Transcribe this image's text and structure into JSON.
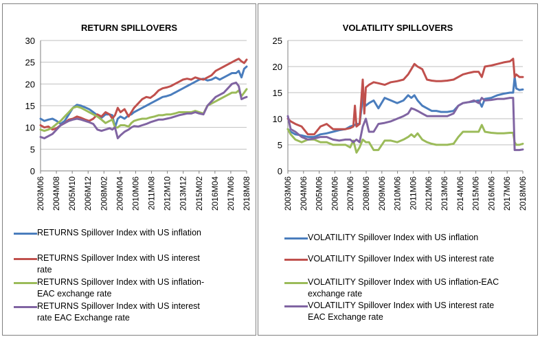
{
  "chart_data": [
    {
      "id": "left",
      "type": "line",
      "title": "RETURN SPILLOVERS",
      "ylim": [
        0,
        30
      ],
      "yticks": [
        0,
        5,
        10,
        15,
        20,
        25,
        30
      ],
      "x_range": [
        2003.42,
        2018.58
      ],
      "xtick_labels": [
        "2003M06",
        "2004M08",
        "2005M10",
        "2006M12",
        "2008M02",
        "2009M04",
        "2010M06",
        "2011M08",
        "2012M10",
        "2013M12",
        "2015M02",
        "2016M04",
        "2017M06",
        "2018M08"
      ],
      "series": [
        {
          "name": "RETURNS Spillover Index with US inflation",
          "color": "#4a7dbd",
          "x": [
            2003.42,
            2003.7,
            2004.0,
            2004.3,
            2004.6,
            2004.9,
            2005.2,
            2005.5,
            2005.8,
            2006.1,
            2006.4,
            2006.7,
            2007.0,
            2007.3,
            2007.6,
            2007.9,
            2008.2,
            2008.5,
            2008.7,
            2008.9,
            2009.1,
            2009.3,
            2009.6,
            2009.9,
            2010.1,
            2010.3,
            2010.6,
            2010.9,
            2011.2,
            2011.5,
            2011.8,
            2012.1,
            2012.4,
            2012.7,
            2013.0,
            2013.3,
            2013.6,
            2013.9,
            2014.2,
            2014.5,
            2014.8,
            2015.1,
            2015.4,
            2015.7,
            2016.0,
            2016.3,
            2016.6,
            2016.9,
            2017.2,
            2017.5,
            2017.8,
            2018.0,
            2018.2,
            2018.4,
            2018.58
          ],
          "y": [
            12,
            11.5,
            11.8,
            12,
            11.5,
            10.8,
            11.5,
            13,
            14.5,
            15.2,
            15,
            14.6,
            14.2,
            13.5,
            12.8,
            12.2,
            13,
            13,
            12.8,
            10,
            12,
            12.5,
            12,
            12.8,
            13,
            13.5,
            14,
            14.5,
            15,
            15.5,
            16,
            16.5,
            17,
            17.2,
            17.5,
            18,
            18.5,
            19,
            19.5,
            20,
            20.5,
            21,
            21.2,
            20.8,
            21,
            21.5,
            21,
            21.5,
            22,
            22.5,
            22.5,
            23,
            21.5,
            23.5,
            24
          ]
        },
        {
          "name": "RETURNS Spillover Index with US interest rate",
          "color": "#c0504d",
          "x": [
            2003.42,
            2003.7,
            2004.0,
            2004.3,
            2004.6,
            2004.9,
            2005.2,
            2005.5,
            2005.8,
            2006.1,
            2006.4,
            2006.7,
            2007.0,
            2007.3,
            2007.6,
            2007.9,
            2008.2,
            2008.5,
            2008.7,
            2008.9,
            2009.1,
            2009.3,
            2009.6,
            2009.9,
            2010.1,
            2010.3,
            2010.6,
            2010.9,
            2011.2,
            2011.5,
            2011.8,
            2012.1,
            2012.4,
            2012.7,
            2013.0,
            2013.3,
            2013.6,
            2013.9,
            2014.2,
            2014.5,
            2014.8,
            2015.1,
            2015.4,
            2015.7,
            2016.0,
            2016.3,
            2016.6,
            2016.9,
            2017.2,
            2017.5,
            2017.8,
            2018.0,
            2018.2,
            2018.4,
            2018.58
          ],
          "y": [
            10.5,
            10,
            10.2,
            9.5,
            9.8,
            10.5,
            11,
            11.8,
            12,
            12.5,
            12.2,
            11.8,
            11.5,
            12,
            13,
            12.5,
            13.5,
            13,
            12,
            12.8,
            14.5,
            13.5,
            14.2,
            12.5,
            13.5,
            14.5,
            15.5,
            16.5,
            17,
            16.8,
            17.5,
            18.5,
            19,
            19.2,
            19.5,
            20,
            20.5,
            21,
            21.2,
            21,
            21.5,
            21.2,
            21,
            21.5,
            22,
            23,
            23.5,
            24,
            24.5,
            25,
            25.5,
            25.8,
            25.2,
            24.8,
            25.6
          ]
        },
        {
          "name": "RETURNS Spillover Index with US inflation-EAC exchange rate",
          "color": "#9bbb59",
          "x": [
            2003.42,
            2003.7,
            2004.0,
            2004.3,
            2004.6,
            2004.9,
            2005.2,
            2005.5,
            2005.8,
            2006.1,
            2006.4,
            2006.7,
            2007.0,
            2007.3,
            2007.6,
            2007.9,
            2008.2,
            2008.5,
            2008.7,
            2008.9,
            2009.1,
            2009.3,
            2009.6,
            2009.9,
            2010.1,
            2010.3,
            2010.6,
            2010.9,
            2011.2,
            2011.5,
            2011.8,
            2012.1,
            2012.4,
            2012.7,
            2013.0,
            2013.3,
            2013.6,
            2013.9,
            2014.2,
            2014.5,
            2014.8,
            2015.1,
            2015.4,
            2015.7,
            2016.0,
            2016.3,
            2016.6,
            2016.9,
            2017.2,
            2017.5,
            2017.8,
            2018.0,
            2018.2,
            2018.4,
            2018.58
          ],
          "y": [
            9.5,
            9.2,
            9.5,
            10,
            10.8,
            11.5,
            12.5,
            13.5,
            14.5,
            14.8,
            14.5,
            14,
            13.5,
            13,
            12.5,
            11.8,
            11,
            11.5,
            11.8,
            10,
            10,
            10.5,
            10.5,
            10.2,
            11,
            11.5,
            11.8,
            12,
            12,
            12.3,
            12.5,
            12.8,
            12.8,
            13,
            13,
            13.2,
            13.5,
            13.5,
            13.5,
            13.5,
            13.8,
            13.5,
            13.2,
            15,
            15.5,
            16,
            16.5,
            17,
            17.5,
            18,
            18,
            18.5,
            17.2,
            18,
            18.8
          ]
        },
        {
          "name": "RETURNS Spillover Index with US interest rate EAC Exchange rate",
          "color": "#8064a2",
          "x": [
            2003.42,
            2003.7,
            2004.0,
            2004.3,
            2004.6,
            2004.9,
            2005.2,
            2005.5,
            2005.8,
            2006.1,
            2006.4,
            2006.7,
            2007.0,
            2007.3,
            2007.6,
            2007.9,
            2008.2,
            2008.5,
            2008.7,
            2008.9,
            2009.1,
            2009.3,
            2009.6,
            2009.9,
            2010.1,
            2010.3,
            2010.6,
            2010.9,
            2011.2,
            2011.5,
            2011.8,
            2012.1,
            2012.4,
            2012.7,
            2013.0,
            2013.3,
            2013.6,
            2013.9,
            2014.2,
            2014.5,
            2014.8,
            2015.1,
            2015.4,
            2015.7,
            2016.0,
            2016.3,
            2016.6,
            2016.9,
            2017.2,
            2017.5,
            2017.8,
            2018.0,
            2018.2,
            2018.4,
            2018.58
          ],
          "y": [
            7.8,
            7.5,
            8,
            8.5,
            9.5,
            10.5,
            11,
            11.5,
            11.8,
            12,
            11.8,
            11.5,
            11.2,
            10.8,
            9.5,
            9.2,
            9.5,
            9.8,
            9.5,
            10,
            7.5,
            8.2,
            9,
            9.5,
            10,
            10.3,
            10.2,
            10.5,
            10.8,
            11.2,
            11.5,
            11.8,
            11.8,
            12,
            12.2,
            12.5,
            12.8,
            13,
            13.2,
            13.2,
            13.5,
            13.2,
            13,
            15,
            16,
            17,
            17.5,
            18,
            19,
            20,
            20.3,
            19.5,
            16.5,
            16.8,
            17
          ]
        }
      ]
    },
    {
      "id": "right",
      "type": "line",
      "title": "VOLATILITY SPILLOVERS",
      "ylim": [
        0,
        25
      ],
      "yticks": [
        0,
        5,
        10,
        15,
        20,
        25
      ],
      "x_range": [
        2003.42,
        2018.42
      ],
      "xtick_labels": [
        "2003M06",
        "2004M06",
        "2005M06",
        "2006M06",
        "2007M06",
        "2008M06",
        "2009M06",
        "2010M06",
        "2011M06",
        "2012M06",
        "2013M06",
        "2014M06",
        "2015M06",
        "2016M06",
        "2017M06",
        "2018M06"
      ],
      "series": [
        {
          "name": "VOLATILITY Spillover Index with US inflation",
          "color": "#4a7dbd",
          "x": [
            2003.42,
            2003.6,
            2003.9,
            2004.3,
            2004.7,
            2005.1,
            2005.5,
            2005.9,
            2006.3,
            2006.7,
            2007.1,
            2007.4,
            2007.7,
            2007.8,
            2008.0,
            2008.2,
            2008.4,
            2008.6,
            2008.9,
            2009.2,
            2009.6,
            2010.0,
            2010.4,
            2010.8,
            2011.1,
            2011.3,
            2011.5,
            2011.7,
            2012.0,
            2012.3,
            2012.6,
            2012.9,
            2013.2,
            2013.6,
            2014.0,
            2014.3,
            2014.6,
            2015.0,
            2015.3,
            2015.6,
            2015.8,
            2016.0,
            2016.4,
            2016.8,
            2017.2,
            2017.6,
            2017.8,
            2017.9,
            2018.0,
            2018.2,
            2018.42
          ],
          "y": [
            8,
            7.5,
            7,
            6.8,
            6.5,
            6.5,
            7,
            7.2,
            7.5,
            7.8,
            8,
            8.5,
            8.8,
            9,
            9,
            14,
            12.5,
            13,
            13.5,
            12,
            14,
            13.5,
            13,
            13.5,
            14.5,
            14,
            14.5,
            13.5,
            12.5,
            12,
            11.5,
            11.5,
            11.3,
            11.3,
            11.5,
            12.5,
            13,
            13.2,
            13.3,
            13.5,
            12.3,
            13.8,
            14,
            14.5,
            14.8,
            15,
            15,
            18,
            15.8,
            15.5,
            15.6
          ]
        },
        {
          "name": "VOLATILITY Spillover Index with US interest rate",
          "color": "#c0504d",
          "x": [
            2003.42,
            2003.6,
            2003.9,
            2004.3,
            2004.7,
            2005.1,
            2005.5,
            2005.9,
            2006.3,
            2006.7,
            2007.1,
            2007.4,
            2007.6,
            2007.7,
            2007.8,
            2008.0,
            2008.2,
            2008.3,
            2008.4,
            2008.6,
            2008.9,
            2009.2,
            2009.6,
            2010.0,
            2010.4,
            2010.8,
            2011.1,
            2011.3,
            2011.5,
            2011.7,
            2012.0,
            2012.3,
            2012.6,
            2012.9,
            2013.2,
            2013.6,
            2014.0,
            2014.3,
            2014.6,
            2015.0,
            2015.3,
            2015.6,
            2015.8,
            2016.0,
            2016.4,
            2016.8,
            2017.2,
            2017.6,
            2017.8,
            2017.9,
            2018.0,
            2018.2,
            2018.42
          ],
          "y": [
            10,
            9.5,
            9,
            8.5,
            7,
            7,
            8.5,
            9,
            8,
            8,
            8,
            8.2,
            8.5,
            12.5,
            8.5,
            9,
            17.5,
            11,
            16,
            16.5,
            17,
            16.8,
            16.5,
            17,
            17.2,
            17.5,
            18.5,
            19.5,
            20.5,
            20,
            19.5,
            17.5,
            17.3,
            17.2,
            17.2,
            17.3,
            17.5,
            18,
            18.5,
            18.8,
            19,
            19,
            18,
            20,
            20.2,
            20.5,
            20.8,
            21,
            21.5,
            18,
            18.5,
            18,
            18
          ]
        },
        {
          "name": "VOLATILITY Spillover Index with US inflation-EAC exchange rate",
          "color": "#9bbb59",
          "x": [
            2003.42,
            2003.6,
            2003.9,
            2004.3,
            2004.7,
            2005.1,
            2005.5,
            2005.9,
            2006.3,
            2006.7,
            2007.1,
            2007.4,
            2007.6,
            2007.8,
            2008.0,
            2008.2,
            2008.4,
            2008.6,
            2008.9,
            2009.2,
            2009.6,
            2010.0,
            2010.4,
            2010.8,
            2011.1,
            2011.3,
            2011.5,
            2011.7,
            2012.0,
            2012.3,
            2012.6,
            2012.9,
            2013.2,
            2013.6,
            2014.0,
            2014.3,
            2014.6,
            2015.0,
            2015.3,
            2015.6,
            2015.8,
            2016.0,
            2016.4,
            2016.8,
            2017.2,
            2017.6,
            2017.8,
            2017.9,
            2018.0,
            2018.2,
            2018.42
          ],
          "y": [
            8,
            7,
            6,
            5.5,
            6,
            6,
            5.5,
            5.5,
            5,
            5,
            5,
            4.5,
            5.8,
            3.5,
            4.5,
            6,
            5.5,
            5.5,
            4,
            4,
            5.8,
            5.8,
            5.5,
            6,
            6.5,
            7,
            6.5,
            7.2,
            6,
            5.5,
            5.2,
            5,
            5,
            5,
            5.2,
            6.5,
            7.5,
            7.5,
            7.5,
            7.5,
            8.8,
            7.5,
            7.3,
            7.2,
            7.2,
            7.3,
            7.3,
            5.5,
            5,
            5,
            5.2
          ]
        },
        {
          "name": "VOLATILITY Spillover Index with US interest rate EAC Exchange rate",
          "color": "#8064a2",
          "x": [
            2003.42,
            2003.6,
            2003.9,
            2004.3,
            2004.7,
            2005.1,
            2005.5,
            2005.9,
            2006.3,
            2006.7,
            2007.1,
            2007.4,
            2007.6,
            2007.8,
            2008.0,
            2008.2,
            2008.4,
            2008.6,
            2008.9,
            2009.2,
            2009.6,
            2010.0,
            2010.4,
            2010.8,
            2011.1,
            2011.3,
            2011.5,
            2011.7,
            2012.0,
            2012.3,
            2012.6,
            2012.9,
            2013.2,
            2013.6,
            2014.0,
            2014.3,
            2014.6,
            2015.0,
            2015.3,
            2015.6,
            2015.8,
            2016.0,
            2016.4,
            2016.8,
            2017.2,
            2017.6,
            2017.8,
            2017.9,
            2018.0,
            2018.2,
            2018.42
          ],
          "y": [
            10.5,
            8,
            7.5,
            6.5,
            6,
            6.2,
            6.5,
            6.5,
            6,
            5.8,
            6,
            6,
            5.5,
            6,
            5.5,
            8.5,
            10,
            7.5,
            7.5,
            9,
            9.2,
            9.5,
            10,
            10.5,
            11,
            12,
            11.8,
            11.5,
            11,
            10.5,
            10.5,
            10.5,
            10.5,
            10.5,
            11,
            12.5,
            13,
            13.2,
            13.5,
            13,
            14,
            13.5,
            13.6,
            13.8,
            13.8,
            14,
            14,
            4,
            4,
            4,
            4.1
          ]
        }
      ]
    }
  ]
}
